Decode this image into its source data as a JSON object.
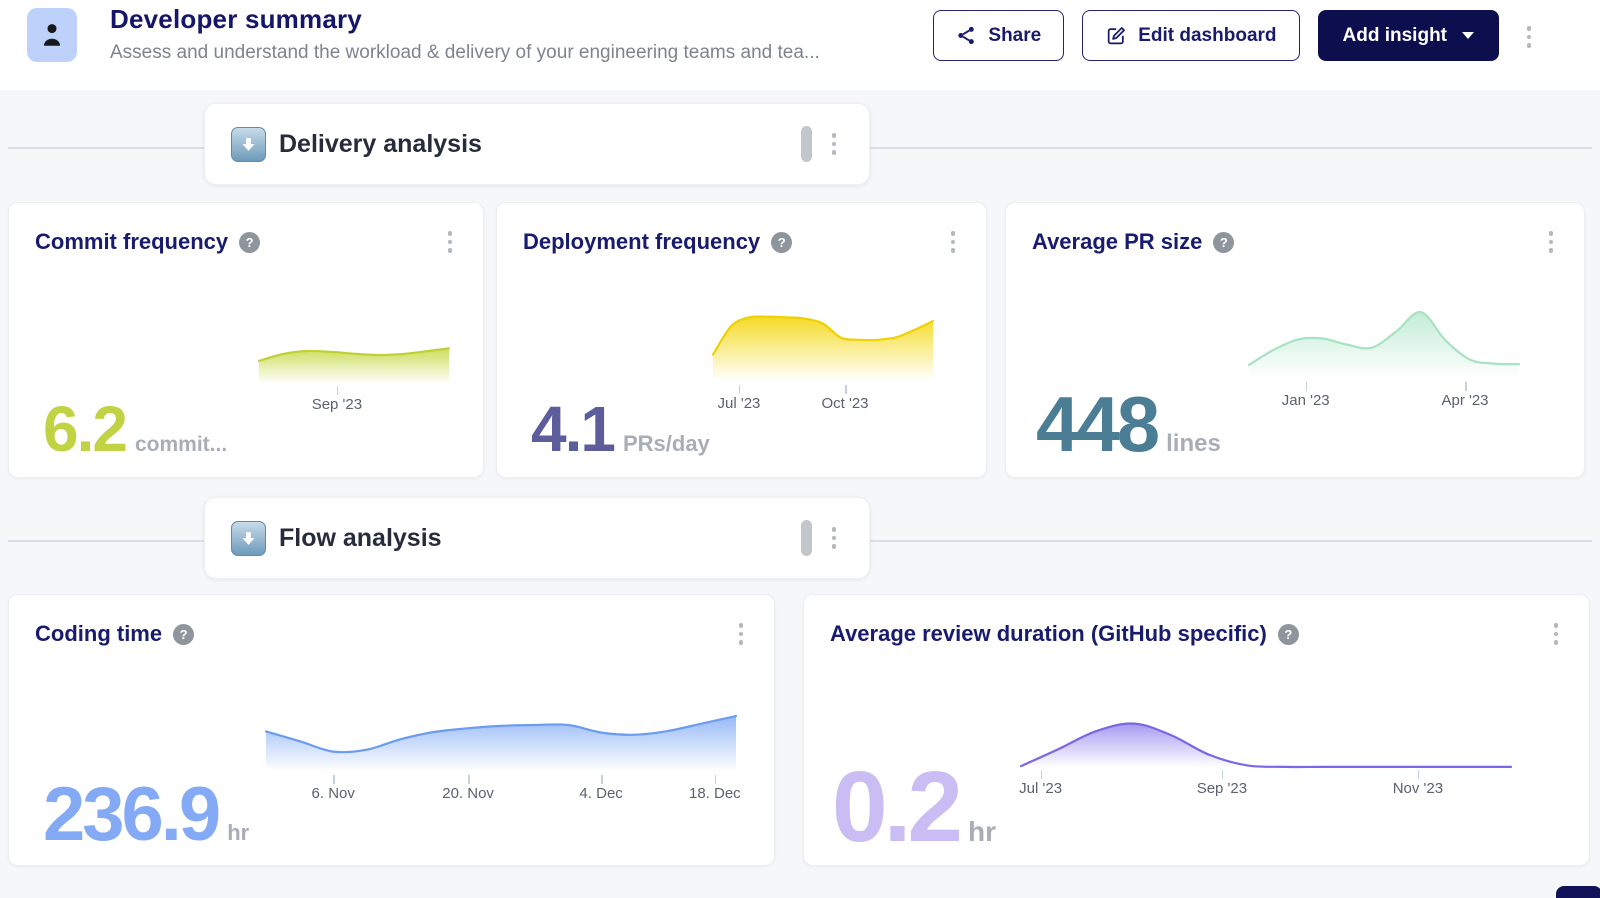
{
  "header": {
    "title": "Developer summary",
    "subtitle": "Assess and understand the workload & delivery of your engineering teams and tea...",
    "actions": {
      "share": "Share",
      "edit": "Edit dashboard",
      "add_insight": "Add insight"
    }
  },
  "icons": {
    "help": "?"
  },
  "sections": {
    "delivery": {
      "title": "Delivery analysis"
    },
    "flow": {
      "title": "Flow analysis"
    }
  },
  "colors": {
    "accent_navy": "#15156a",
    "button_solid_bg": "#0d0e4d",
    "page_bg": "#f6f7f9",
    "divider": "#dadde9"
  },
  "chart_data": [
    {
      "id": "commit-frequency",
      "type": "area",
      "title": "Commit frequency",
      "value": "6.2",
      "unit": "commit...",
      "number_color": "#c1d344",
      "line_color": "#bdd133",
      "fill_color": "#c9dc52",
      "fill_opacity": 0.95,
      "ylim": [
        0,
        9
      ],
      "values": [
        5.2,
        6.7,
        7.4,
        7.2,
        6.8,
        6.5,
        6.7,
        7.3,
        8.0
      ],
      "x_ticks": [
        {
          "label": "Sep '23",
          "pos": 0.41
        }
      ],
      "grid": false,
      "legend": false
    },
    {
      "id": "deployment-frequency",
      "type": "area",
      "title": "Deployment frequency",
      "value": "4.1",
      "unit": "PRs/day",
      "number_color": "#5d5d9b",
      "line_color": "#f0d000",
      "fill_color": "#f4d91a",
      "fill_opacity": 0.95,
      "ylim": [
        0,
        6
      ],
      "values": [
        2.1,
        4.4,
        5.1,
        5.15,
        5.1,
        5.0,
        4.6,
        3.45,
        3.3,
        3.3,
        3.5,
        4.1,
        4.8
      ],
      "x_ticks": [
        {
          "label": "Jul '23",
          "pos": 0.118
        },
        {
          "label": "Oct '23",
          "pos": 0.6
        }
      ],
      "grid": false,
      "legend": false
    },
    {
      "id": "average-pr-size",
      "type": "area",
      "title": "Average PR size",
      "value": "448",
      "unit": "lines",
      "number_color": "#4b7d95",
      "line_color": "#a7e2c2",
      "fill_color": "#b7e9cf",
      "fill_opacity": 0.85,
      "ylim": [
        0,
        820
      ],
      "values": [
        150,
        320,
        440,
        450,
        380,
        345,
        530,
        750,
        430,
        210,
        165,
        158
      ],
      "x_ticks": [
        {
          "label": "Jan '23",
          "pos": 0.21
        },
        {
          "label": "Apr '23",
          "pos": 0.8
        }
      ],
      "grid": false,
      "legend": false
    },
    {
      "id": "coding-time",
      "type": "area",
      "title": "Coding time",
      "value": "236.9",
      "unit": "hr",
      "number_color": "#84aaf6",
      "line_color": "#6b9cf0",
      "fill_color": "#8cb2f5",
      "fill_opacity": 0.9,
      "ylim": [
        95,
        285
      ],
      "values": [
        228,
        196,
        162,
        168,
        202,
        226,
        238,
        246,
        249,
        249,
        224,
        217,
        230,
        254,
        278
      ],
      "x_ticks": [
        {
          "label": "6. Nov",
          "pos": 0.143
        },
        {
          "label": "20. Nov",
          "pos": 0.43
        },
        {
          "label": "4. Dec",
          "pos": 0.713
        },
        {
          "label": "18. Dec",
          "pos": 0.955
        }
      ],
      "grid": false,
      "legend": false
    },
    {
      "id": "average-review-duration",
      "type": "area",
      "title": "Average review duration (GitHub specific)",
      "value": "0.2",
      "unit": "hr",
      "number_color": "#c9bdf4",
      "line_color": "#7b67e4",
      "fill_color": "#9d8ff0",
      "fill_opacity": 0.9,
      "ylim": [
        0,
        1.32
      ],
      "values": [
        0.04,
        0.5,
        0.98,
        1.18,
        0.86,
        0.34,
        0.06,
        0.02,
        0.02,
        0.02,
        0.02,
        0.02,
        0.02,
        0.02
      ],
      "x_ticks": [
        {
          "label": "Jul '23",
          "pos": 0.04
        },
        {
          "label": "Sep '23",
          "pos": 0.41
        },
        {
          "label": "Nov '23",
          "pos": 0.81
        }
      ],
      "grid": false,
      "legend": false
    }
  ]
}
